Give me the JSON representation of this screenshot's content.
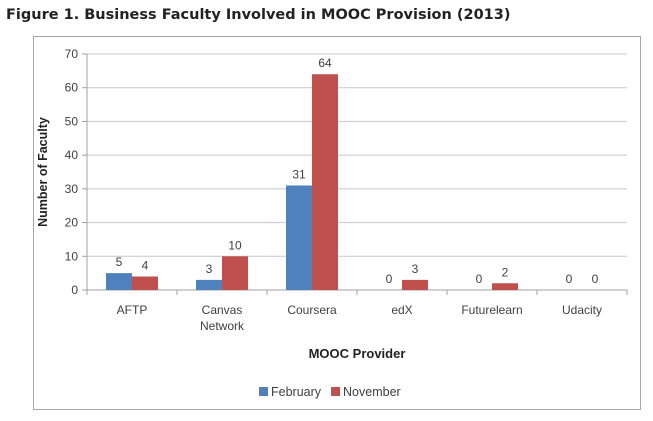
{
  "title": "Figure 1. Business Faculty Involved in MOOC Provision (2013)",
  "chart_data": {
    "type": "bar",
    "title": "",
    "xlabel": "MOOC Provider",
    "ylabel": "Number of Faculty",
    "ylim": [
      0,
      70
    ],
    "yticks": [
      0,
      10,
      20,
      30,
      40,
      50,
      60,
      70
    ],
    "grid": true,
    "legend": "bottom",
    "categories": [
      "AFTP",
      "Canvas Network",
      "Coursera",
      "edX",
      "Futurelearn",
      "Udacity"
    ],
    "series": [
      {
        "name": "February",
        "color": "#4f81bd",
        "values": [
          5,
          3,
          31,
          0,
          0,
          0
        ]
      },
      {
        "name": "November",
        "color": "#c0504d",
        "values": [
          4,
          10,
          64,
          3,
          2,
          0
        ]
      }
    ]
  }
}
